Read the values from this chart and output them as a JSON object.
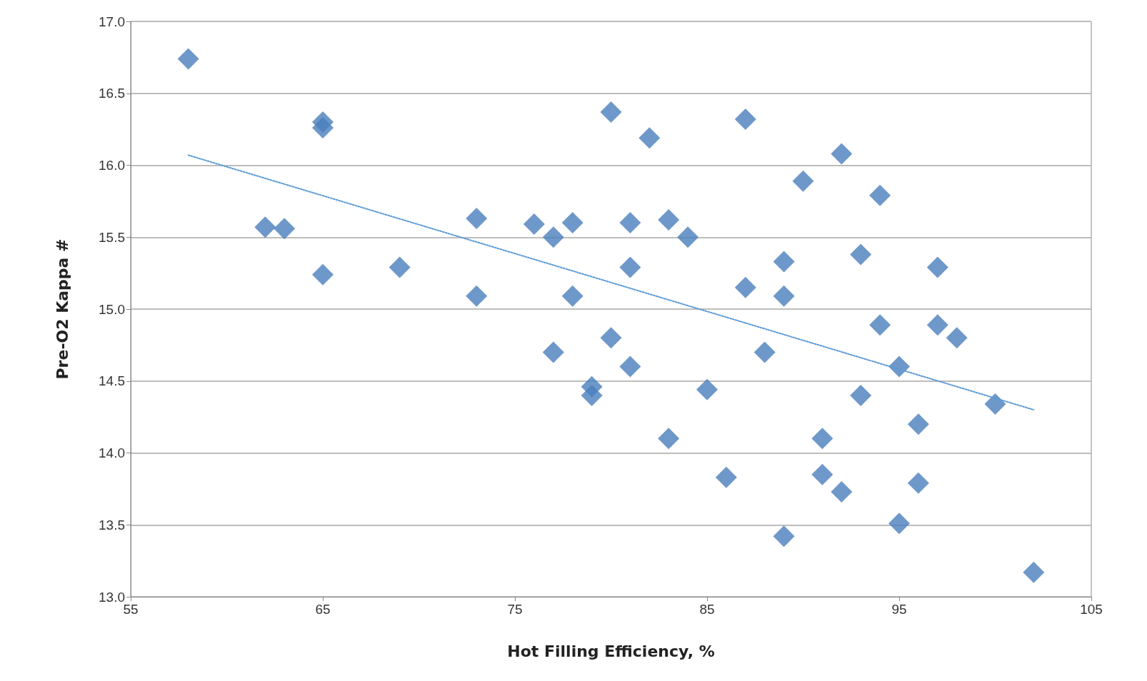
{
  "chart_data": {
    "type": "scatter",
    "xlabel": "Hot Filling Efficiency, %",
    "ylabel": "Pre-O2 Kappa #",
    "xlim": [
      55,
      105
    ],
    "xticks": [
      55,
      65,
      75,
      85,
      95,
      105
    ],
    "ylim": [
      13,
      17
    ],
    "yticks": [
      {
        "value": 13,
        "label": "13.0"
      },
      {
        "value": 13.5,
        "label": "13.5"
      },
      {
        "value": 14,
        "label": "14.0"
      },
      {
        "value": 14.5,
        "label": "14.5"
      },
      {
        "value": 15,
        "label": "15.0"
      },
      {
        "value": 15.5,
        "label": "15.5"
      },
      {
        "value": 16,
        "label": "16.0"
      },
      {
        "value": 16.5,
        "label": "16.5"
      },
      {
        "value": 17,
        "label": "17.0"
      }
    ],
    "grid": "y",
    "marker": "diamond",
    "series": [
      {
        "color": "#4a7ebb",
        "x": [
          58,
          65,
          65,
          62,
          63,
          65,
          69,
          73,
          73,
          76,
          77,
          77,
          78,
          78,
          79,
          79,
          80,
          80,
          81,
          81,
          81,
          82,
          83,
          83,
          84,
          85,
          86,
          87,
          87,
          88,
          89,
          89,
          89,
          90,
          91,
          91,
          92,
          92,
          93,
          93,
          94,
          94,
          95,
          95,
          96,
          96,
          97,
          97,
          98,
          100,
          102
        ],
        "values": [
          16.74,
          16.3,
          16.26,
          15.57,
          15.56,
          15.24,
          15.29,
          15.63,
          15.09,
          15.59,
          15.5,
          14.7,
          15.6,
          15.09,
          14.46,
          14.4,
          16.37,
          14.8,
          15.6,
          15.29,
          14.6,
          16.19,
          15.62,
          14.1,
          15.5,
          14.44,
          13.83,
          16.32,
          15.15,
          14.7,
          15.33,
          15.09,
          13.42,
          15.89,
          14.1,
          13.85,
          16.08,
          13.73,
          15.38,
          14.4,
          15.79,
          14.89,
          14.6,
          13.51,
          14.2,
          13.79,
          15.29,
          14.89,
          14.8,
          14.34,
          13.17
        ]
      },
      {
        "type": "line",
        "color": "#5b9bd5",
        "x": [
          58,
          102
        ],
        "values": [
          16.07,
          14.3
        ],
        "marker": "none",
        "line_style": "dotted"
      }
    ]
  }
}
